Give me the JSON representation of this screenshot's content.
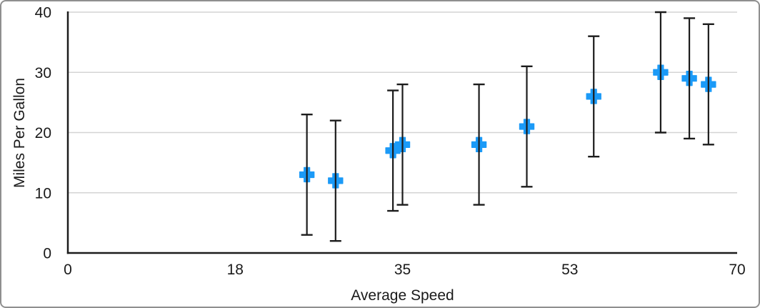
{
  "chart_data": {
    "type": "scatter",
    "title": "",
    "xlabel": "Average Speed",
    "ylabel": "Miles Per Gallon",
    "xlim": [
      0,
      70
    ],
    "ylim": [
      0,
      40
    ],
    "x_ticks": [
      {
        "value": 0,
        "label": "0"
      },
      {
        "value": 17.5,
        "label": "18"
      },
      {
        "value": 35,
        "label": "35"
      },
      {
        "value": 52.5,
        "label": "53"
      },
      {
        "value": 70,
        "label": "70"
      }
    ],
    "y_ticks": [
      {
        "value": 0,
        "label": "0"
      },
      {
        "value": 10,
        "label": "10"
      },
      {
        "value": 20,
        "label": "20"
      },
      {
        "value": 30,
        "label": "30"
      },
      {
        "value": 40,
        "label": "40"
      }
    ],
    "grid": "horizontal-only",
    "legend": "none",
    "marker": "plus-cross",
    "error_bars": "vertical-symmetric-with-caps",
    "points": [
      {
        "x": 25,
        "y": 13,
        "error_plus": 10,
        "error_minus": 10
      },
      {
        "x": 28,
        "y": 12,
        "error_plus": 10,
        "error_minus": 10
      },
      {
        "x": 34,
        "y": 17,
        "error_plus": 10,
        "error_minus": 10
      },
      {
        "x": 35,
        "y": 18,
        "error_plus": 10,
        "error_minus": 10
      },
      {
        "x": 43,
        "y": 18,
        "error_plus": 10,
        "error_minus": 10
      },
      {
        "x": 48,
        "y": 21,
        "error_plus": 10,
        "error_minus": 10
      },
      {
        "x": 55,
        "y": 26,
        "error_plus": 10,
        "error_minus": 10
      },
      {
        "x": 62,
        "y": 30,
        "error_plus": 10,
        "error_minus": 10
      },
      {
        "x": 65,
        "y": 29,
        "error_plus": 10,
        "error_minus": 10
      },
      {
        "x": 67,
        "y": 28,
        "error_plus": 10,
        "error_minus": 10
      }
    ],
    "colors": {
      "marker": "#1b9af7",
      "error_bar": "#1c1c1c",
      "axis": "#1c1c1c",
      "gridline": "#d4d4d4",
      "tick_text": "#1a1a1a",
      "frame_border": "#8f8f8f",
      "background": "#ffffff"
    }
  }
}
